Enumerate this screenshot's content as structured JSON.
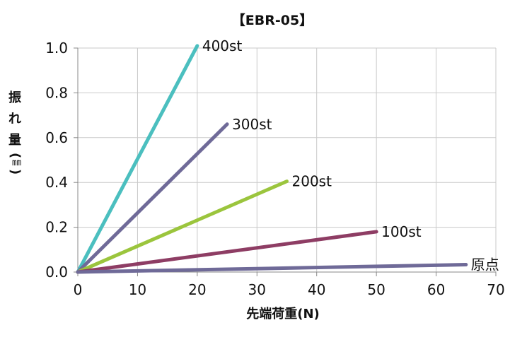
{
  "chart_data": {
    "type": "line",
    "title": "【EBR-05】",
    "xlabel": "先端荷重(N)",
    "ylabel_chars": [
      "振",
      "れ",
      "量"
    ],
    "ylabel_unit": "㎜",
    "ylabel_open": "(",
    "ylabel_close": ")",
    "xlim": [
      0,
      70
    ],
    "ylim": [
      0,
      1.0
    ],
    "xticks": [
      0,
      10,
      20,
      30,
      40,
      50,
      60,
      70
    ],
    "yticks": [
      "0.0",
      "0.2",
      "0.4",
      "0.6",
      "0.8",
      "1.0"
    ],
    "grid": true,
    "legend": "none",
    "series": [
      {
        "name": "400st",
        "color": "#4bbfbf",
        "points": [
          [
            0,
            0
          ],
          [
            20,
            1.01
          ]
        ]
      },
      {
        "name": "300st",
        "color": "#6f6a98",
        "points": [
          [
            0,
            0
          ],
          [
            25,
            0.66
          ]
        ]
      },
      {
        "name": "200st",
        "color": "#9bc53d",
        "points": [
          [
            0,
            0
          ],
          [
            35,
            0.405
          ]
        ]
      },
      {
        "name": "100st",
        "color": "#8e3d64",
        "points": [
          [
            0,
            0
          ],
          [
            50,
            0.18
          ]
        ]
      },
      {
        "name": "原点",
        "color": "#6f6a98",
        "points": [
          [
            0,
            0
          ],
          [
            65,
            0.033
          ]
        ]
      }
    ]
  }
}
